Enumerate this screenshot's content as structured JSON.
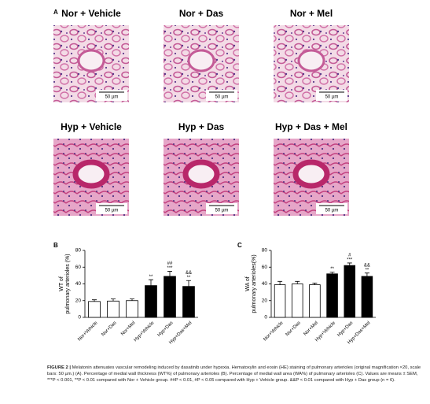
{
  "panel_a": {
    "label": "A",
    "images": [
      {
        "title": "Nor + Vehicle",
        "scale_bar": "50 µm"
      },
      {
        "title": "Nor + Das",
        "scale_bar": "50 µm"
      },
      {
        "title": "Nor + Mel",
        "scale_bar": "50 µm"
      },
      {
        "title": "Hyp + Vehicle",
        "scale_bar": "50 µm"
      },
      {
        "title": "Hyp + Das",
        "scale_bar": "50 µm"
      },
      {
        "title": "Hyp + Das + Mel",
        "scale_bar": "50 µm"
      }
    ]
  },
  "chart_data": [
    {
      "type": "bar",
      "label": "B",
      "y_label_lines": [
        "WT of",
        "pulmonary arterioles (%)"
      ],
      "categories": [
        "Nor+Vehicle",
        "Nor+Das",
        "Nor+Mel",
        "Hyp+Vehicle",
        "Hyp+Das",
        "Hyp+Das+Mel"
      ],
      "values": [
        19,
        19.5,
        20,
        38,
        49,
        37
      ],
      "errors": [
        2,
        2.5,
        2,
        7,
        6,
        7
      ],
      "colors": [
        "#ffffff",
        "#ffffff",
        "#ffffff",
        "#000000",
        "#000000",
        "#000000"
      ],
      "annotations": [
        null,
        null,
        null,
        [
          "**"
        ],
        [
          "##",
          "***"
        ],
        [
          "&&",
          "**"
        ]
      ],
      "ylim": [
        0,
        80
      ],
      "yticks": [
        0,
        20,
        40,
        60,
        80
      ]
    },
    {
      "type": "bar",
      "label": "C",
      "y_label_lines": [
        "WA of",
        "pulmonary arterioles(%)"
      ],
      "categories": [
        "Nor+Vehicle",
        "Nor+Das",
        "Nor+Mel",
        "Hyp+Vehicle",
        "Hyp+Das",
        "Hyp+Das+Mel"
      ],
      "values": [
        39,
        40,
        39,
        52,
        62,
        49
      ],
      "errors": [
        4,
        3,
        2,
        2,
        3,
        4
      ],
      "colors": [
        "#ffffff",
        "#ffffff",
        "#ffffff",
        "#000000",
        "#000000",
        "#000000"
      ],
      "annotations": [
        null,
        null,
        null,
        [
          "**"
        ],
        [
          "#",
          "***"
        ],
        [
          "&&",
          "**"
        ]
      ],
      "ylim": [
        0,
        80
      ],
      "yticks": [
        0,
        20,
        40,
        60,
        80
      ]
    }
  ],
  "caption": {
    "label": "FIGURE 2 |",
    "text": "Melatonin attenuates vascular remodeling induced by dasatinib under hypoxia. Hematoxylin and eosin (HE) staining of pulmonary arterioles (original magnification ×20, scale bars: 50 µm.) (A). Percentage of medial wall thickness (WT%) of pulmonary arterioles (B). Percentage of medial wall area (WA%) of pulmonary arterioles (C). Values are means ± SEM, ***P < 0.001, **P < 0.01 compared with Nor + Vehicle group. ##P < 0.01, #P < 0.05 compared with Hyp + Vehicle group. &&P < 0.01 compared with Hyp + Das group (n = 6)."
  }
}
